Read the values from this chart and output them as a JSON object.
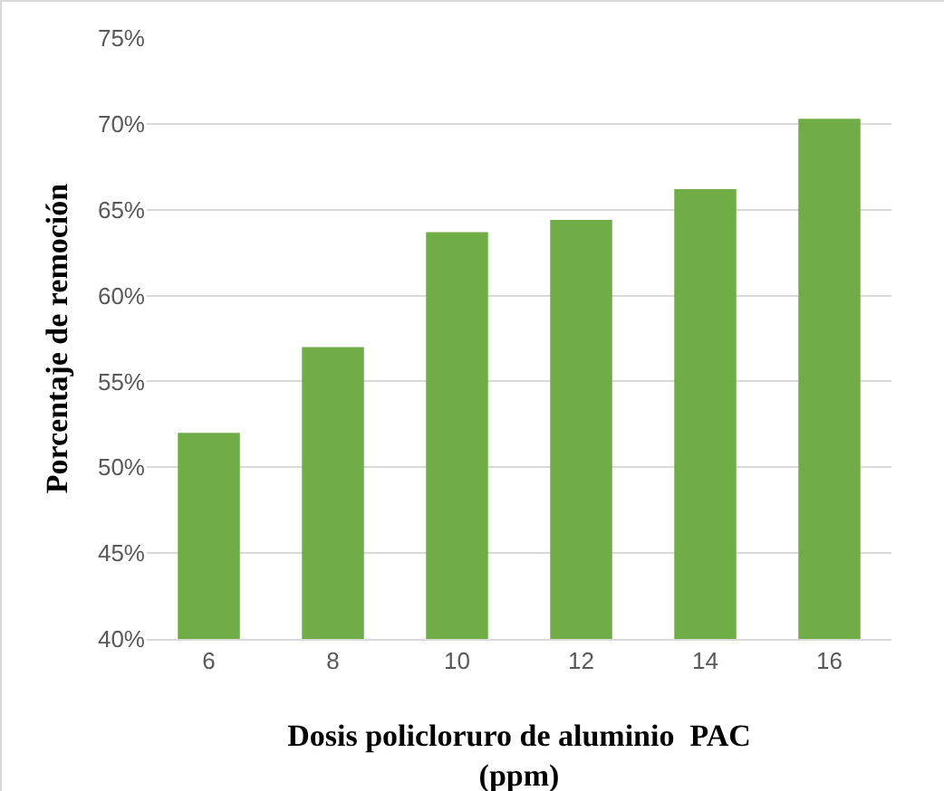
{
  "chart_data": {
    "type": "bar",
    "categories": [
      "6",
      "8",
      "10",
      "12",
      "14",
      "16"
    ],
    "values": [
      52,
      57,
      63.7,
      64.4,
      66.2,
      70.3
    ],
    "color": "#70ad47",
    "xlabel": "Dosis policloruro de aluminio  PAC\n(ppm)",
    "ylabel": "Porcentaje de remoción",
    "ylim": [
      40,
      75
    ],
    "yticks": [
      {
        "value": 40,
        "label": "40%"
      },
      {
        "value": 45,
        "label": "45%"
      },
      {
        "value": 50,
        "label": "50%"
      },
      {
        "value": 55,
        "label": "55%"
      },
      {
        "value": 60,
        "label": "60%"
      },
      {
        "value": 65,
        "label": "65%"
      },
      {
        "value": 70,
        "label": "70%"
      },
      {
        "value": 75,
        "label": "75%"
      }
    ],
    "grid": "y"
  }
}
